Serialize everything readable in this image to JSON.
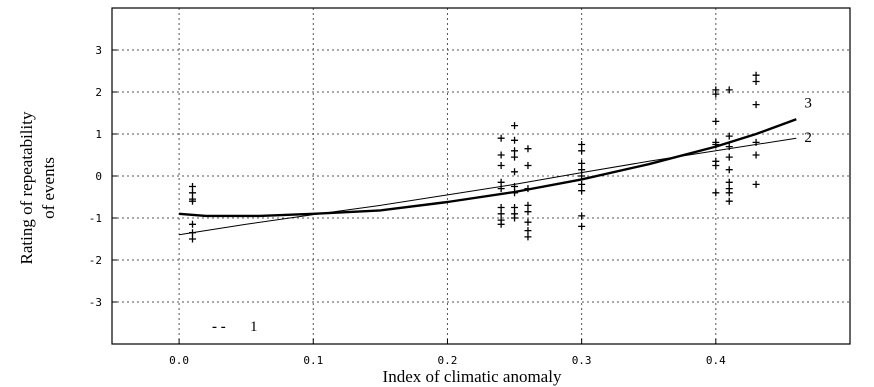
{
  "chart_data": {
    "type": "scatter",
    "title": "",
    "xlabel": "Index of climatic anomaly",
    "ylabel_lines": [
      "Rating of repeatability",
      "of events"
    ],
    "xlim": [
      -0.05,
      0.5
    ],
    "ylim": [
      -4,
      4
    ],
    "x_ticks": [
      {
        "value": 0.0,
        "label": "0.0"
      },
      {
        "value": 0.1,
        "label": "0.1"
      },
      {
        "value": 0.2,
        "label": "0.2"
      },
      {
        "value": 0.3,
        "label": "0.3"
      },
      {
        "value": 0.4,
        "label": "0.4"
      }
    ],
    "y_ticks": [
      {
        "value": 3,
        "label": "3"
      },
      {
        "value": 2,
        "label": "2"
      },
      {
        "value": 1,
        "label": "1"
      },
      {
        "value": 0,
        "label": "0"
      },
      {
        "value": -1,
        "label": "-1"
      },
      {
        "value": -2,
        "label": "-2"
      },
      {
        "value": -3,
        "label": "-3"
      }
    ],
    "grid": true,
    "legend": {
      "position": "bottom-left",
      "marker": "- -",
      "label": "1"
    },
    "scatter_points": {
      "marker": "+",
      "points": [
        [
          0.01,
          -0.25
        ],
        [
          0.01,
          -0.4
        ],
        [
          0.01,
          -0.55
        ],
        [
          0.01,
          -0.6
        ],
        [
          0.01,
          -1.15
        ],
        [
          0.01,
          -1.35
        ],
        [
          0.01,
          -1.5
        ],
        [
          0.24,
          0.9
        ],
        [
          0.24,
          0.5
        ],
        [
          0.24,
          0.25
        ],
        [
          0.24,
          -0.15
        ],
        [
          0.24,
          -0.3
        ],
        [
          0.24,
          -0.75
        ],
        [
          0.24,
          -0.9
        ],
        [
          0.24,
          -1.05
        ],
        [
          0.24,
          -1.15
        ],
        [
          0.25,
          1.2
        ],
        [
          0.25,
          0.85
        ],
        [
          0.25,
          0.6
        ],
        [
          0.25,
          0.45
        ],
        [
          0.25,
          0.1
        ],
        [
          0.25,
          -0.25
        ],
        [
          0.25,
          -0.4
        ],
        [
          0.25,
          -0.75
        ],
        [
          0.25,
          -0.9
        ],
        [
          0.25,
          -1.0
        ],
        [
          0.26,
          0.65
        ],
        [
          0.26,
          0.25
        ],
        [
          0.26,
          -0.3
        ],
        [
          0.26,
          -0.7
        ],
        [
          0.26,
          -0.85
        ],
        [
          0.26,
          -1.1
        ],
        [
          0.26,
          -1.3
        ],
        [
          0.26,
          -1.45
        ],
        [
          0.3,
          0.75
        ],
        [
          0.3,
          0.6
        ],
        [
          0.3,
          0.3
        ],
        [
          0.3,
          0.15
        ],
        [
          0.3,
          0.0
        ],
        [
          0.3,
          -0.2
        ],
        [
          0.3,
          -0.35
        ],
        [
          0.3,
          -0.95
        ],
        [
          0.3,
          -1.2
        ],
        [
          0.4,
          2.05
        ],
        [
          0.4,
          1.95
        ],
        [
          0.4,
          1.3
        ],
        [
          0.4,
          0.8
        ],
        [
          0.4,
          0.75
        ],
        [
          0.4,
          0.35
        ],
        [
          0.4,
          0.25
        ],
        [
          0.4,
          -0.4
        ],
        [
          0.41,
          2.05
        ],
        [
          0.41,
          0.95
        ],
        [
          0.41,
          0.7
        ],
        [
          0.41,
          0.45
        ],
        [
          0.41,
          0.15
        ],
        [
          0.41,
          -0.15
        ],
        [
          0.41,
          -0.3
        ],
        [
          0.41,
          -0.4
        ],
        [
          0.41,
          -0.6
        ],
        [
          0.43,
          2.4
        ],
        [
          0.43,
          2.25
        ],
        [
          0.43,
          1.7
        ],
        [
          0.43,
          0.8
        ],
        [
          0.43,
          0.5
        ],
        [
          0.43,
          -0.2
        ]
      ]
    },
    "series": [
      {
        "name": "3",
        "style": "thick",
        "x": [
          0.0,
          0.02,
          0.06,
          0.1,
          0.15,
          0.2,
          0.25,
          0.3,
          0.35,
          0.4,
          0.43,
          0.46
        ],
        "y": [
          -0.9,
          -0.95,
          -0.95,
          -0.9,
          -0.82,
          -0.62,
          -0.38,
          -0.08,
          0.28,
          0.7,
          1.0,
          1.35
        ]
      },
      {
        "name": "2",
        "style": "thin",
        "x": [
          0.0,
          0.05,
          0.1,
          0.15,
          0.2,
          0.25,
          0.3,
          0.35,
          0.4,
          0.46
        ],
        "y": [
          -1.4,
          -1.15,
          -0.92,
          -0.7,
          -0.45,
          -0.2,
          0.08,
          0.35,
          0.6,
          0.9
        ]
      }
    ],
    "colors": {
      "axis": "#000000",
      "grid": "#555555",
      "line": "#000000",
      "points": "#000000"
    }
  }
}
